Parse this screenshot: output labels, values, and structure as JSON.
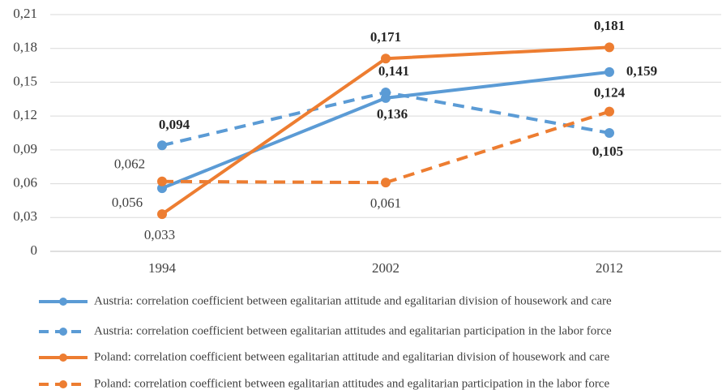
{
  "chart_data": {
    "type": "line",
    "categories": [
      "1994",
      "2002",
      "2012"
    ],
    "ylim": [
      0,
      0.21
    ],
    "yticks": [
      0,
      {
        "value": 0.03,
        "label": "0,03"
      },
      {
        "value": 0.06,
        "label": "0,06"
      },
      {
        "value": 0.09,
        "label": "0,09"
      },
      {
        "value": 0.12,
        "label": "0,12"
      },
      {
        "value": 0.15,
        "label": "0,15"
      },
      {
        "value": 0.18,
        "label": "0,18"
      },
      {
        "value": 0.21,
        "label": "0,21"
      }
    ],
    "grid": true,
    "legend": "bottom",
    "series": [
      {
        "name": "Austria: correlation coefficient between egalitarian attitude and egalitarian division of housework and care",
        "color": "#5b9bd5",
        "dashed": false,
        "values": [
          0.056,
          0.136,
          0.159
        ],
        "value_labels": [
          "0,056",
          "0,136",
          "0,159"
        ]
      },
      {
        "name": "Austria: correlation coefficient between egalitarian attitudes and egalitarian participation in the labor force",
        "color": "#5b9bd5",
        "dashed": true,
        "values": [
          0.094,
          0.141,
          0.105
        ],
        "value_labels": [
          "0,094",
          "0,141",
          "0,105"
        ]
      },
      {
        "name": "Poland: correlation coefficient between egalitarian attitude and egalitarian division of housework and care",
        "color": "#ed7d31",
        "dashed": false,
        "values": [
          0.033,
          0.171,
          0.181
        ],
        "value_labels": [
          "0,033",
          "0,171",
          "0,181"
        ]
      },
      {
        "name": "Poland: correlation coefficient between egalitarian attitudes and egalitarian participation in the labor force",
        "color": "#ed7d31",
        "dashed": true,
        "values": [
          0.062,
          0.061,
          0.124
        ],
        "value_labels": [
          "0,062",
          "0,061",
          "0,124"
        ]
      }
    ]
  }
}
